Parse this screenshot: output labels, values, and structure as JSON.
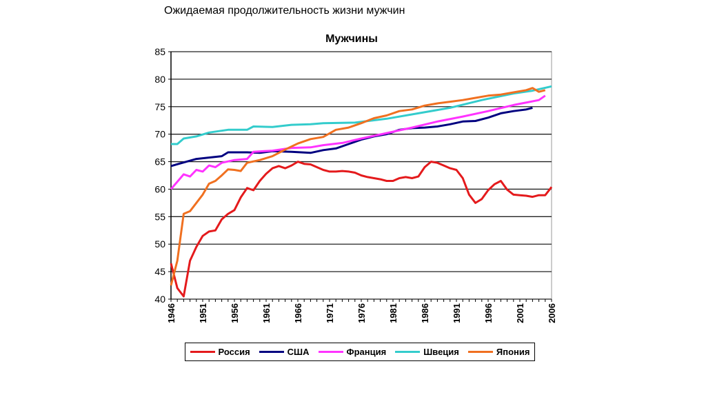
{
  "slide_title": "Ожидаемая продолжительность жизни мужчин",
  "chart_data": {
    "type": "line",
    "title": "Мужчины",
    "xlabel": "",
    "ylabel": "",
    "xlim": [
      1946,
      2006
    ],
    "ylim": [
      40,
      85
    ],
    "y_ticks": [
      40,
      45,
      50,
      55,
      60,
      65,
      70,
      75,
      80,
      85
    ],
    "x_ticks": [
      1946,
      1951,
      1956,
      1961,
      1966,
      1971,
      1976,
      1981,
      1986,
      1991,
      1996,
      2001,
      2006
    ],
    "grid": "horizontal",
    "legend_placement": "bottom",
    "series": [
      {
        "name": "Россия",
        "color": "#e41a1c",
        "x": [
          1946,
          1947,
          1948,
          1949,
          1950,
          1951,
          1952,
          1953,
          1954,
          1955,
          1956,
          1957,
          1958,
          1959,
          1960,
          1961,
          1962,
          1963,
          1964,
          1965,
          1966,
          1967,
          1968,
          1969,
          1970,
          1971,
          1972,
          1973,
          1974,
          1975,
          1976,
          1977,
          1978,
          1979,
          1980,
          1981,
          1982,
          1983,
          1984,
          1985,
          1986,
          1987,
          1988,
          1989,
          1990,
          1991,
          1992,
          1993,
          1994,
          1995,
          1996,
          1997,
          1998,
          1999,
          2000,
          2001,
          2002,
          2003,
          2004,
          2005,
          2006
        ],
        "y": [
          46.5,
          42,
          40.5,
          47,
          49.5,
          51.5,
          52.3,
          52.5,
          54.5,
          55.5,
          56.2,
          58.5,
          60.2,
          59.8,
          61.5,
          62.8,
          63.8,
          64.2,
          63.8,
          64.3,
          65,
          64.6,
          64.5,
          64,
          63.5,
          63.2,
          63.2,
          63.3,
          63.2,
          63,
          62.5,
          62.2,
          62,
          61.8,
          61.5,
          61.5,
          62,
          62.2,
          62,
          62.3,
          64,
          65,
          64.8,
          64.3,
          63.8,
          63.5,
          62,
          59,
          57.5,
          58.2,
          59.8,
          60.9,
          61.5,
          59.9,
          59,
          58.9,
          58.8,
          58.6,
          58.9,
          58.9,
          60.4
        ]
      },
      {
        "name": "США",
        "color": "#000080",
        "x": [
          1946,
          1950,
          1954,
          1955,
          1958,
          1960,
          1962,
          1965,
          1968,
          1970,
          1972,
          1974,
          1976,
          1978,
          1980,
          1982,
          1984,
          1986,
          1988,
          1990,
          1992,
          1994,
          1996,
          1998,
          2000,
          2002,
          2003
        ],
        "y": [
          64.2,
          65.5,
          66,
          66.7,
          66.7,
          66.6,
          66.9,
          66.8,
          66.6,
          67.1,
          67.4,
          68.2,
          69,
          69.6,
          70,
          70.8,
          71.1,
          71.2,
          71.4,
          71.8,
          72.3,
          72.4,
          73,
          73.8,
          74.2,
          74.5,
          74.8
        ]
      },
      {
        "name": "Франция",
        "color": "#ff33ff",
        "x": [
          1946,
          1948,
          1949,
          1950,
          1951,
          1952,
          1953,
          1954,
          1956,
          1958,
          1959,
          1962,
          1965,
          1968,
          1970,
          1973,
          1976,
          1980,
          1984,
          1988,
          1992,
          1996,
          2000,
          2004,
          2005
        ],
        "y": [
          60,
          62.7,
          62.3,
          63.5,
          63.2,
          64.3,
          64,
          64.8,
          65.3,
          65.5,
          66.8,
          67,
          67.5,
          67.6,
          68,
          68.4,
          69.2,
          70.2,
          71.2,
          72.3,
          73.2,
          74.2,
          75.3,
          76.2,
          77
        ]
      },
      {
        "name": "Швеция",
        "color": "#33cccc",
        "x": [
          1946,
          1947,
          1948,
          1950,
          1952,
          1955,
          1958,
          1959,
          1962,
          1965,
          1968,
          1970,
          1975,
          1980,
          1985,
          1990,
          1995,
          2000,
          2003,
          2006
        ],
        "y": [
          68.2,
          68.2,
          69.2,
          69.6,
          70.3,
          70.8,
          70.8,
          71.4,
          71.3,
          71.7,
          71.8,
          72,
          72.1,
          72.8,
          73.8,
          74.8,
          76.2,
          77.4,
          77.9,
          78.7
        ]
      },
      {
        "name": "Япония",
        "color": "#f07020",
        "x": [
          1946,
          1947,
          1948,
          1949,
          1950,
          1951,
          1952,
          1953,
          1954,
          1955,
          1956,
          1957,
          1958,
          1960,
          1962,
          1964,
          1966,
          1968,
          1970,
          1972,
          1974,
          1976,
          1978,
          1980,
          1982,
          1984,
          1986,
          1988,
          1990,
          1992,
          1994,
          1996,
          1998,
          2000,
          2002,
          2003,
          2004,
          2005
        ],
        "y": [
          42.5,
          47,
          55.5,
          56,
          57.5,
          59,
          61,
          61.5,
          62.5,
          63.6,
          63.5,
          63.3,
          64.8,
          65.3,
          66,
          67.2,
          68.3,
          69.1,
          69.5,
          70.8,
          71.2,
          72,
          72.9,
          73.4,
          74.2,
          74.5,
          75.2,
          75.6,
          75.9,
          76.2,
          76.6,
          77,
          77.2,
          77.6,
          78,
          78.4,
          77.7,
          78
        ]
      }
    ]
  }
}
